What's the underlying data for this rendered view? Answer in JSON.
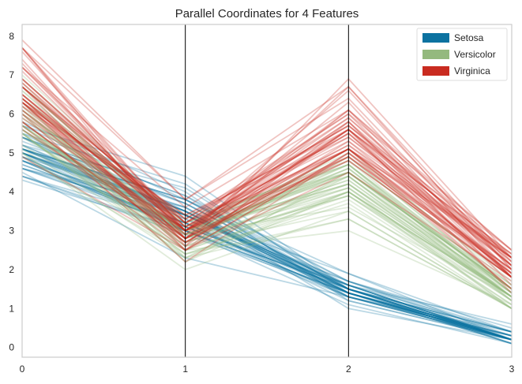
{
  "chart_data": {
    "type": "line",
    "title": "Parallel Coordinates for 4 Features",
    "xlabel": "",
    "ylabel": "",
    "x": [
      0,
      1,
      2,
      3
    ],
    "xlim": [
      0,
      3
    ],
    "ylim": [
      -0.25,
      8.3
    ],
    "x_ticks": [
      "0",
      "1",
      "2",
      "3"
    ],
    "y_ticks": [
      "0",
      "1",
      "2",
      "3",
      "4",
      "5",
      "6",
      "7",
      "8"
    ],
    "grid": false,
    "legend_position": "top-right",
    "series": [
      {
        "name": "Setosa",
        "color": "#0c72a0",
        "values": [
          [
            5.1,
            3.5,
            1.4,
            0.2
          ],
          [
            4.9,
            3.0,
            1.4,
            0.2
          ],
          [
            4.7,
            3.2,
            1.3,
            0.2
          ],
          [
            4.6,
            3.1,
            1.5,
            0.2
          ],
          [
            5.0,
            3.6,
            1.4,
            0.2
          ],
          [
            5.4,
            3.9,
            1.7,
            0.4
          ],
          [
            4.6,
            3.4,
            1.4,
            0.3
          ],
          [
            5.0,
            3.4,
            1.5,
            0.2
          ],
          [
            4.4,
            2.9,
            1.4,
            0.2
          ],
          [
            4.9,
            3.1,
            1.5,
            0.1
          ],
          [
            5.4,
            3.7,
            1.5,
            0.2
          ],
          [
            4.8,
            3.4,
            1.6,
            0.2
          ],
          [
            4.8,
            3.0,
            1.4,
            0.1
          ],
          [
            4.3,
            3.0,
            1.1,
            0.1
          ],
          [
            5.8,
            4.0,
            1.2,
            0.2
          ],
          [
            5.7,
            4.4,
            1.5,
            0.4
          ],
          [
            5.4,
            3.9,
            1.3,
            0.4
          ],
          [
            5.1,
            3.5,
            1.4,
            0.3
          ],
          [
            5.7,
            3.8,
            1.7,
            0.3
          ],
          [
            5.1,
            3.8,
            1.5,
            0.3
          ],
          [
            5.4,
            3.4,
            1.7,
            0.2
          ],
          [
            5.1,
            3.7,
            1.5,
            0.4
          ],
          [
            4.6,
            3.6,
            1.0,
            0.2
          ],
          [
            5.1,
            3.3,
            1.7,
            0.5
          ],
          [
            4.8,
            3.4,
            1.9,
            0.2
          ],
          [
            5.0,
            3.0,
            1.6,
            0.2
          ],
          [
            5.0,
            3.4,
            1.6,
            0.4
          ],
          [
            5.2,
            3.5,
            1.5,
            0.2
          ],
          [
            5.2,
            3.4,
            1.4,
            0.2
          ],
          [
            4.7,
            3.2,
            1.6,
            0.2
          ],
          [
            4.8,
            3.1,
            1.6,
            0.2
          ],
          [
            5.4,
            3.4,
            1.5,
            0.4
          ],
          [
            5.2,
            4.1,
            1.5,
            0.1
          ],
          [
            5.5,
            4.2,
            1.4,
            0.2
          ],
          [
            4.9,
            3.1,
            1.5,
            0.2
          ],
          [
            5.0,
            3.2,
            1.2,
            0.2
          ],
          [
            5.5,
            3.5,
            1.3,
            0.2
          ],
          [
            4.9,
            3.6,
            1.4,
            0.1
          ],
          [
            4.4,
            3.0,
            1.3,
            0.2
          ],
          [
            5.1,
            3.4,
            1.5,
            0.2
          ],
          [
            5.0,
            3.5,
            1.3,
            0.3
          ],
          [
            4.5,
            2.3,
            1.3,
            0.3
          ],
          [
            4.4,
            3.2,
            1.3,
            0.2
          ],
          [
            5.0,
            3.5,
            1.6,
            0.6
          ],
          [
            5.1,
            3.8,
            1.9,
            0.4
          ],
          [
            4.8,
            3.0,
            1.4,
            0.3
          ],
          [
            5.1,
            3.8,
            1.6,
            0.2
          ],
          [
            4.6,
            3.2,
            1.4,
            0.2
          ],
          [
            5.3,
            3.7,
            1.5,
            0.2
          ],
          [
            5.0,
            3.3,
            1.4,
            0.2
          ]
        ]
      },
      {
        "name": "Versicolor",
        "color": "#94b97e",
        "values": [
          [
            7.0,
            3.2,
            4.7,
            1.4
          ],
          [
            6.4,
            3.2,
            4.5,
            1.5
          ],
          [
            6.9,
            3.1,
            4.9,
            1.5
          ],
          [
            5.5,
            2.3,
            4.0,
            1.3
          ],
          [
            6.5,
            2.8,
            4.6,
            1.5
          ],
          [
            5.7,
            2.8,
            4.5,
            1.3
          ],
          [
            6.3,
            3.3,
            4.7,
            1.6
          ],
          [
            4.9,
            2.4,
            3.3,
            1.0
          ],
          [
            6.6,
            2.9,
            4.6,
            1.3
          ],
          [
            5.2,
            2.7,
            3.9,
            1.4
          ],
          [
            5.0,
            2.0,
            3.5,
            1.0
          ],
          [
            5.9,
            3.0,
            4.2,
            1.5
          ],
          [
            6.0,
            2.2,
            4.0,
            1.0
          ],
          [
            6.1,
            2.9,
            4.7,
            1.4
          ],
          [
            5.6,
            2.9,
            3.6,
            1.3
          ],
          [
            6.7,
            3.1,
            4.4,
            1.4
          ],
          [
            5.6,
            3.0,
            4.5,
            1.5
          ],
          [
            5.8,
            2.7,
            4.1,
            1.0
          ],
          [
            6.2,
            2.2,
            4.5,
            1.5
          ],
          [
            5.6,
            2.5,
            3.9,
            1.1
          ],
          [
            5.9,
            3.2,
            4.8,
            1.8
          ],
          [
            6.1,
            2.8,
            4.0,
            1.3
          ],
          [
            6.3,
            2.5,
            4.9,
            1.5
          ],
          [
            6.1,
            2.8,
            4.7,
            1.2
          ],
          [
            6.4,
            2.9,
            4.3,
            1.3
          ],
          [
            6.6,
            3.0,
            4.4,
            1.4
          ],
          [
            6.8,
            2.8,
            4.8,
            1.4
          ],
          [
            6.7,
            3.0,
            5.0,
            1.7
          ],
          [
            6.0,
            2.9,
            4.5,
            1.5
          ],
          [
            5.7,
            2.6,
            3.5,
            1.0
          ],
          [
            5.5,
            2.4,
            3.8,
            1.1
          ],
          [
            5.5,
            2.4,
            3.7,
            1.0
          ],
          [
            5.8,
            2.7,
            3.9,
            1.2
          ],
          [
            6.0,
            2.7,
            5.1,
            1.6
          ],
          [
            5.4,
            3.0,
            4.5,
            1.5
          ],
          [
            6.0,
            3.4,
            4.5,
            1.6
          ],
          [
            6.7,
            3.1,
            4.7,
            1.5
          ],
          [
            6.3,
            2.3,
            4.4,
            1.3
          ],
          [
            5.6,
            3.0,
            4.1,
            1.3
          ],
          [
            5.5,
            2.5,
            4.0,
            1.3
          ],
          [
            5.5,
            2.6,
            4.4,
            1.2
          ],
          [
            6.1,
            3.0,
            4.6,
            1.4
          ],
          [
            5.8,
            2.6,
            4.0,
            1.2
          ],
          [
            5.0,
            2.3,
            3.3,
            1.0
          ],
          [
            5.6,
            2.7,
            4.2,
            1.3
          ],
          [
            5.7,
            3.0,
            4.2,
            1.2
          ],
          [
            5.7,
            2.9,
            4.2,
            1.3
          ],
          [
            6.2,
            2.9,
            4.3,
            1.3
          ],
          [
            5.1,
            2.5,
            3.0,
            1.1
          ],
          [
            5.7,
            2.8,
            4.1,
            1.3
          ]
        ]
      },
      {
        "name": "Virginica",
        "color": "#c92b20",
        "values": [
          [
            6.3,
            3.3,
            6.0,
            2.5
          ],
          [
            5.8,
            2.7,
            5.1,
            1.9
          ],
          [
            7.1,
            3.0,
            5.9,
            2.1
          ],
          [
            6.3,
            2.9,
            5.6,
            1.8
          ],
          [
            6.5,
            3.0,
            5.8,
            2.2
          ],
          [
            7.6,
            3.0,
            6.6,
            2.1
          ],
          [
            4.9,
            2.5,
            4.5,
            1.7
          ],
          [
            7.3,
            2.9,
            6.3,
            1.8
          ],
          [
            6.7,
            2.5,
            5.8,
            1.8
          ],
          [
            7.2,
            3.6,
            6.1,
            2.5
          ],
          [
            6.5,
            3.2,
            5.1,
            2.0
          ],
          [
            6.4,
            2.7,
            5.3,
            1.9
          ],
          [
            6.8,
            3.0,
            5.5,
            2.1
          ],
          [
            5.7,
            2.5,
            5.0,
            2.0
          ],
          [
            5.8,
            2.8,
            5.1,
            2.4
          ],
          [
            6.4,
            3.2,
            5.3,
            2.3
          ],
          [
            6.5,
            3.0,
            5.5,
            1.8
          ],
          [
            7.7,
            3.8,
            6.7,
            2.2
          ],
          [
            7.7,
            2.6,
            6.9,
            2.3
          ],
          [
            6.0,
            2.2,
            5.0,
            1.5
          ],
          [
            6.9,
            3.2,
            5.7,
            2.3
          ],
          [
            5.6,
            2.8,
            4.9,
            2.0
          ],
          [
            7.7,
            2.8,
            6.7,
            2.0
          ],
          [
            6.3,
            2.7,
            4.9,
            1.8
          ],
          [
            6.7,
            3.3,
            5.7,
            2.1
          ],
          [
            7.2,
            3.2,
            6.0,
            1.8
          ],
          [
            6.2,
            2.8,
            4.8,
            1.8
          ],
          [
            6.1,
            3.0,
            4.9,
            1.8
          ],
          [
            6.4,
            2.8,
            5.6,
            2.1
          ],
          [
            7.2,
            3.0,
            5.8,
            1.6
          ],
          [
            7.4,
            2.8,
            6.1,
            1.9
          ],
          [
            7.9,
            3.8,
            6.4,
            2.0
          ],
          [
            6.4,
            2.8,
            5.6,
            2.2
          ],
          [
            6.3,
            2.8,
            5.1,
            1.5
          ],
          [
            6.1,
            2.6,
            5.6,
            1.4
          ],
          [
            7.7,
            3.0,
            6.1,
            2.3
          ],
          [
            6.3,
            3.4,
            5.6,
            2.4
          ],
          [
            6.4,
            3.1,
            5.5,
            1.8
          ],
          [
            6.0,
            3.0,
            4.8,
            1.8
          ],
          [
            6.9,
            3.1,
            5.4,
            2.1
          ],
          [
            6.7,
            3.1,
            5.6,
            2.4
          ],
          [
            6.9,
            3.1,
            5.1,
            2.3
          ],
          [
            5.8,
            2.7,
            5.1,
            1.9
          ],
          [
            6.8,
            3.2,
            5.9,
            2.3
          ],
          [
            6.7,
            3.3,
            5.7,
            2.5
          ],
          [
            6.7,
            3.0,
            5.2,
            2.3
          ],
          [
            6.3,
            2.5,
            5.0,
            1.9
          ],
          [
            6.5,
            3.0,
            5.2,
            2.0
          ],
          [
            6.2,
            3.4,
            5.4,
            2.3
          ],
          [
            5.9,
            3.0,
            5.1,
            1.8
          ]
        ]
      }
    ]
  }
}
